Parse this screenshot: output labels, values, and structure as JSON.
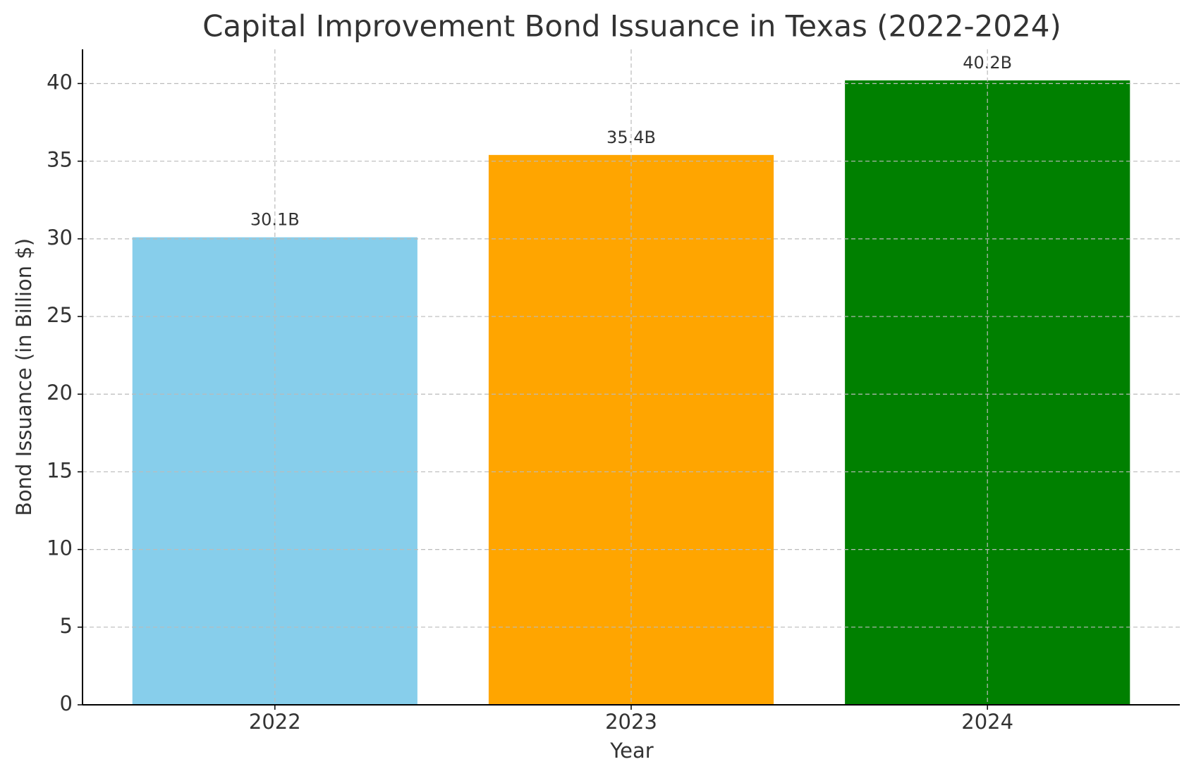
{
  "chart_data": {
    "type": "bar",
    "title": "Capital Improvement Bond Issuance in Texas (2022-2024)",
    "x_label": "Year",
    "y_label": "Bond Issuance (in Billion $)",
    "categories": [
      "2022",
      "2023",
      "2024"
    ],
    "values": [
      30.1,
      35.4,
      40.2
    ],
    "value_labels": [
      "30.1B",
      "35.4B",
      "40.2B"
    ],
    "colors": [
      "#87ceeb",
      "#ffa500",
      "#008000"
    ],
    "ylim": [
      0,
      42.2
    ],
    "yticks": [
      0,
      5,
      10,
      15,
      20,
      25,
      30,
      35,
      40
    ],
    "grid": true
  }
}
